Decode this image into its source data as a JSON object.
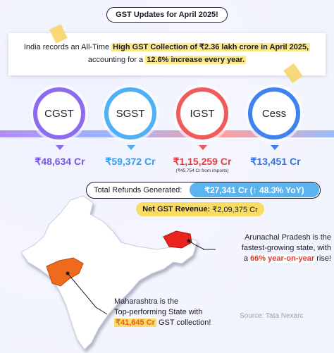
{
  "header": {
    "title": "GST Updates for April 2025!"
  },
  "note": {
    "line1_pre": "India records an All-Time ",
    "line1_hl": "High GST Collection of ₹2.36 lakh crore in April 2025,",
    "line2_pre": "accounting for a ",
    "line2_hl": "12.6% increase every year."
  },
  "taxes": [
    {
      "name": "CGST",
      "value": "₹48,634 Cr",
      "color": "#8d6bf0",
      "sub": ""
    },
    {
      "name": "SGST",
      "value": "₹59,372 Cr",
      "color": "#4fb0f6",
      "sub": ""
    },
    {
      "name": "IGST",
      "value": "₹1,15,259 Cr",
      "color": "#f05a5a",
      "sub": "(₹45,754 Cr from imports)"
    },
    {
      "name": "Cess",
      "value": "₹13,451 Cr",
      "color": "#3f83f0",
      "sub": ""
    }
  ],
  "refunds": {
    "label": "Total Refunds Generated:",
    "value": "₹27,341 Cr (↑ 48.3% YoY)"
  },
  "net": {
    "label": "Net GST Revenue:",
    "value": "₹2,09,375 Cr"
  },
  "arunachal": {
    "line1": "Arunachal Pradesh is the",
    "line2": "fastest-growing state, with",
    "line3_pre": "a ",
    "line3_hl": "66% year-on-year",
    "line3_post": " rise!"
  },
  "maharashtra": {
    "line1": "Maharashtra is the",
    "line2": "Top-performing State with",
    "line3_hl": "₹41,645 Cr",
    "line3_post": " GST collection!"
  },
  "source": "Source: Tata Nexarc",
  "colors": {
    "tape": "#f6d56b",
    "map": "#ffffff",
    "maharashtra": "#f06a1e",
    "arunachal": "#e8241c"
  }
}
